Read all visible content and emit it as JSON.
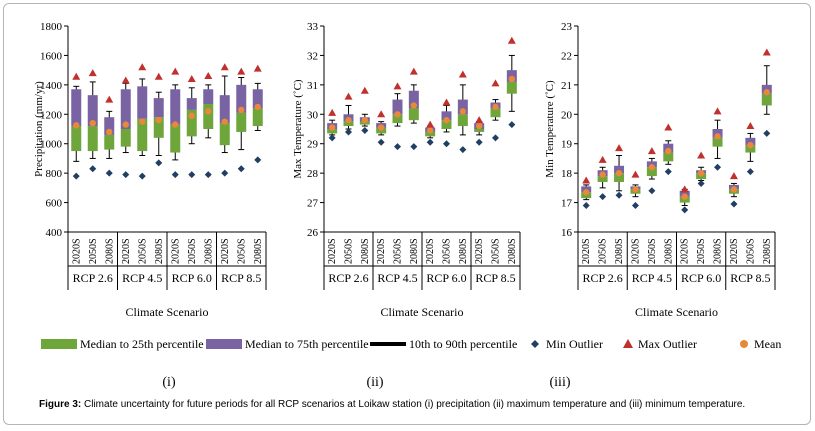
{
  "chart_data": [
    {
      "type": "box",
      "panel_label": "(i)",
      "ylabel": "Precipitation (mm/yr)",
      "xlabel": "Climate Scenario",
      "ylim": [
        400,
        1800
      ],
      "yticks": [
        400,
        600,
        800,
        1000,
        1200,
        1400,
        1600,
        1800
      ],
      "groups": [
        "RCP 2.6",
        "RCP 4.5",
        "RCP 6.0",
        "RCP 8.5"
      ],
      "periods": [
        "2020S",
        "2050S",
        "2080S"
      ],
      "boxes": [
        {
          "group": "RCP 2.6",
          "period": "2020S",
          "p10": 880,
          "p25": 950,
          "median": 1120,
          "p75": 1370,
          "p90": 1390,
          "mean": 1125,
          "min": 780,
          "max": 1455
        },
        {
          "group": "RCP 2.6",
          "period": "2050S",
          "p10": 900,
          "p25": 950,
          "median": 1120,
          "p75": 1330,
          "p90": 1420,
          "mean": 1140,
          "min": 830,
          "max": 1480
        },
        {
          "group": "RCP 2.6",
          "period": "2080S",
          "p10": 900,
          "p25": 960,
          "median": 1060,
          "p75": 1180,
          "p90": 1220,
          "mean": 1080,
          "min": 800,
          "max": 1300
        },
        {
          "group": "RCP 4.5",
          "period": "2020S",
          "p10": 940,
          "p25": 980,
          "median": 1100,
          "p75": 1370,
          "p90": 1410,
          "mean": 1130,
          "min": 790,
          "max": 1430
        },
        {
          "group": "RCP 4.5",
          "period": "2050S",
          "p10": 920,
          "p25": 950,
          "median": 1170,
          "p75": 1390,
          "p90": 1440,
          "mean": 1150,
          "min": 780,
          "max": 1520
        },
        {
          "group": "RCP 4.5",
          "period": "2080S",
          "p10": 920,
          "p25": 1040,
          "median": 1180,
          "p75": 1310,
          "p90": 1350,
          "mean": 1160,
          "min": 870,
          "max": 1455
        },
        {
          "group": "RCP 6.0",
          "period": "2020S",
          "p10": 890,
          "p25": 940,
          "median": 1130,
          "p75": 1370,
          "p90": 1400,
          "mean": 1130,
          "min": 790,
          "max": 1490
        },
        {
          "group": "RCP 6.0",
          "period": "2050S",
          "p10": 1000,
          "p25": 1050,
          "median": 1230,
          "p75": 1310,
          "p90": 1380,
          "mean": 1190,
          "min": 790,
          "max": 1440
        },
        {
          "group": "RCP 6.0",
          "period": "2080S",
          "p10": 1040,
          "p25": 1100,
          "median": 1270,
          "p75": 1370,
          "p90": 1400,
          "mean": 1220,
          "min": 790,
          "max": 1460
        },
        {
          "group": "RCP 8.5",
          "period": "2020S",
          "p10": 940,
          "p25": 990,
          "median": 1140,
          "p75": 1330,
          "p90": 1460,
          "mean": 1150,
          "min": 800,
          "max": 1520
        },
        {
          "group": "RCP 8.5",
          "period": "2050S",
          "p10": 960,
          "p25": 1080,
          "median": 1210,
          "p75": 1400,
          "p90": 1450,
          "mean": 1230,
          "min": 830,
          "max": 1490
        },
        {
          "group": "RCP 8.5",
          "period": "2080S",
          "p10": 1090,
          "p25": 1120,
          "median": 1240,
          "p75": 1370,
          "p90": 1410,
          "mean": 1250,
          "min": 890,
          "max": 1510
        }
      ]
    },
    {
      "type": "box",
      "panel_label": "(ii)",
      "ylabel": "Max Temperature (˚C)",
      "xlabel": "Climate Scenario",
      "ylim": [
        26,
        33
      ],
      "yticks": [
        26,
        27,
        28,
        29,
        30,
        31,
        32,
        33
      ],
      "groups": [
        "RCP 2.6",
        "RCP 4.5",
        "RCP 6.0",
        "RCP 8.5"
      ],
      "periods": [
        "2020S",
        "2050S",
        "2080S"
      ],
      "boxes": [
        {
          "group": "RCP 2.6",
          "period": "2020S",
          "p10": 29.3,
          "p25": 29.35,
          "median": 29.5,
          "p75": 29.7,
          "p90": 29.8,
          "mean": 29.55,
          "min": 29.2,
          "max": 30.05
        },
        {
          "group": "RCP 2.6",
          "period": "2050S",
          "p10": 29.5,
          "p25": 29.6,
          "median": 29.75,
          "p75": 30.0,
          "p90": 30.3,
          "mean": 29.8,
          "min": 29.4,
          "max": 30.6
        },
        {
          "group": "RCP 2.6",
          "period": "2080S",
          "p10": 29.6,
          "p25": 29.65,
          "median": 29.75,
          "p75": 29.9,
          "p90": 30.0,
          "mean": 29.8,
          "min": 29.45,
          "max": 30.8
        },
        {
          "group": "RCP 4.5",
          "period": "2020S",
          "p10": 29.3,
          "p25": 29.35,
          "median": 29.55,
          "p75": 29.7,
          "p90": 29.75,
          "mean": 29.55,
          "min": 29.05,
          "max": 30.0
        },
        {
          "group": "RCP 4.5",
          "period": "2050S",
          "p10": 29.6,
          "p25": 29.7,
          "median": 30.0,
          "p75": 30.5,
          "p90": 30.7,
          "mean": 30.0,
          "min": 28.9,
          "max": 30.95
        },
        {
          "group": "RCP 4.5",
          "period": "2080S",
          "p10": 29.7,
          "p25": 29.8,
          "median": 30.2,
          "p75": 30.8,
          "p90": 31.0,
          "mean": 30.3,
          "min": 28.9,
          "max": 31.45
        },
        {
          "group": "RCP 6.0",
          "period": "2020S",
          "p10": 29.2,
          "p25": 29.25,
          "median": 29.4,
          "p75": 29.55,
          "p90": 29.6,
          "mean": 29.45,
          "min": 29.05,
          "max": 29.65
        },
        {
          "group": "RCP 6.0",
          "period": "2050S",
          "p10": 29.4,
          "p25": 29.5,
          "median": 29.8,
          "p75": 30.1,
          "p90": 30.3,
          "mean": 29.8,
          "min": 29.0,
          "max": 30.4
        },
        {
          "group": "RCP 6.0",
          "period": "2080S",
          "p10": 29.3,
          "p25": 29.6,
          "median": 30.0,
          "p75": 30.5,
          "p90": 31.0,
          "mean": 30.1,
          "min": 28.8,
          "max": 31.35
        },
        {
          "group": "RCP 8.5",
          "period": "2020S",
          "p10": 29.3,
          "p25": 29.4,
          "median": 29.5,
          "p75": 29.7,
          "p90": 29.75,
          "mean": 29.6,
          "min": 29.05,
          "max": 29.8
        },
        {
          "group": "RCP 8.5",
          "period": "2050S",
          "p10": 29.8,
          "p25": 29.9,
          "median": 30.2,
          "p75": 30.4,
          "p90": 30.5,
          "mean": 30.25,
          "min": 29.2,
          "max": 31.05
        },
        {
          "group": "RCP 8.5",
          "period": "2080S",
          "p10": 30.1,
          "p25": 30.7,
          "median": 31.1,
          "p75": 31.5,
          "p90": 32.0,
          "mean": 31.2,
          "min": 29.65,
          "max": 32.5
        }
      ]
    },
    {
      "type": "box",
      "panel_label": "(iii)",
      "ylabel": "Min Temperature (˚C)",
      "xlabel": "Climate Scenario",
      "ylim": [
        16,
        23
      ],
      "yticks": [
        16,
        17,
        18,
        19,
        20,
        21,
        22,
        23
      ],
      "groups": [
        "RCP 2.6",
        "RCP 4.5",
        "RCP 6.0",
        "RCP 8.5"
      ],
      "periods": [
        "2020S",
        "2050S",
        "2080S"
      ],
      "boxes": [
        {
          "group": "RCP 2.6",
          "period": "2020S",
          "p10": 17.1,
          "p25": 17.15,
          "median": 17.35,
          "p75": 17.55,
          "p90": 17.6,
          "mean": 17.35,
          "min": 16.9,
          "max": 17.75
        },
        {
          "group": "RCP 2.6",
          "period": "2050S",
          "p10": 17.5,
          "p25": 17.7,
          "median": 17.9,
          "p75": 18.1,
          "p90": 18.2,
          "mean": 17.95,
          "min": 17.2,
          "max": 18.45
        },
        {
          "group": "RCP 2.6",
          "period": "2080S",
          "p10": 17.4,
          "p25": 17.7,
          "median": 18.0,
          "p75": 18.25,
          "p90": 18.6,
          "mean": 18.0,
          "min": 17.25,
          "max": 18.85
        },
        {
          "group": "RCP 4.5",
          "period": "2020S",
          "p10": 17.2,
          "p25": 17.3,
          "median": 17.45,
          "p75": 17.55,
          "p90": 17.6,
          "mean": 17.45,
          "min": 16.9,
          "max": 17.95
        },
        {
          "group": "RCP 4.5",
          "period": "2050S",
          "p10": 17.8,
          "p25": 17.9,
          "median": 18.2,
          "p75": 18.4,
          "p90": 18.5,
          "mean": 18.2,
          "min": 17.4,
          "max": 18.75
        },
        {
          "group": "RCP 4.5",
          "period": "2080S",
          "p10": 18.3,
          "p25": 18.4,
          "median": 18.7,
          "p75": 19.0,
          "p90": 19.1,
          "mean": 18.75,
          "min": 18.05,
          "max": 19.55
        },
        {
          "group": "RCP 6.0",
          "period": "2020S",
          "p10": 16.9,
          "p25": 17.0,
          "median": 17.2,
          "p75": 17.4,
          "p90": 17.45,
          "mean": 17.2,
          "min": 16.75,
          "max": 17.45
        },
        {
          "group": "RCP 6.0",
          "period": "2050S",
          "p10": 17.75,
          "p25": 17.8,
          "median": 18.0,
          "p75": 18.1,
          "p90": 18.2,
          "mean": 18.0,
          "min": 17.65,
          "max": 18.6
        },
        {
          "group": "RCP 6.0",
          "period": "2080S",
          "p10": 18.5,
          "p25": 18.9,
          "median": 19.2,
          "p75": 19.5,
          "p90": 19.8,
          "mean": 19.25,
          "min": 18.2,
          "max": 20.1
        },
        {
          "group": "RCP 8.5",
          "period": "2020S",
          "p10": 17.2,
          "p25": 17.3,
          "median": 17.45,
          "p75": 17.6,
          "p90": 17.65,
          "mean": 17.45,
          "min": 16.95,
          "max": 17.9
        },
        {
          "group": "RCP 8.5",
          "period": "2050S",
          "p10": 18.4,
          "p25": 18.7,
          "median": 18.95,
          "p75": 19.2,
          "p90": 19.35,
          "mean": 18.95,
          "min": 18.05,
          "max": 19.6
        },
        {
          "group": "RCP 8.5",
          "period": "2080S",
          "p10": 20.0,
          "p25": 20.3,
          "median": 20.7,
          "p75": 21.0,
          "p90": 21.65,
          "mean": 20.75,
          "min": 19.35,
          "max": 22.1
        }
      ]
    }
  ],
  "legend": {
    "p25": "Median to 25th percentile",
    "p75": "Median to 75th percentile",
    "whisker": "10th to 90th percentile",
    "min": "Min Outlier",
    "max": "Max Outlier",
    "mean": "Mean"
  },
  "caption": {
    "label": "Figure 3:",
    "text": " Climate uncertainty for future periods for all RCP scenarios at Loikaw station (i) precipitation (ii) maximum temperature and (iii) minimum temperature."
  },
  "colors": {
    "green": "#6fa63b",
    "purple": "#7a63a3",
    "mean": "#e8883a",
    "max": "#c0302d",
    "min": "#223f63"
  }
}
